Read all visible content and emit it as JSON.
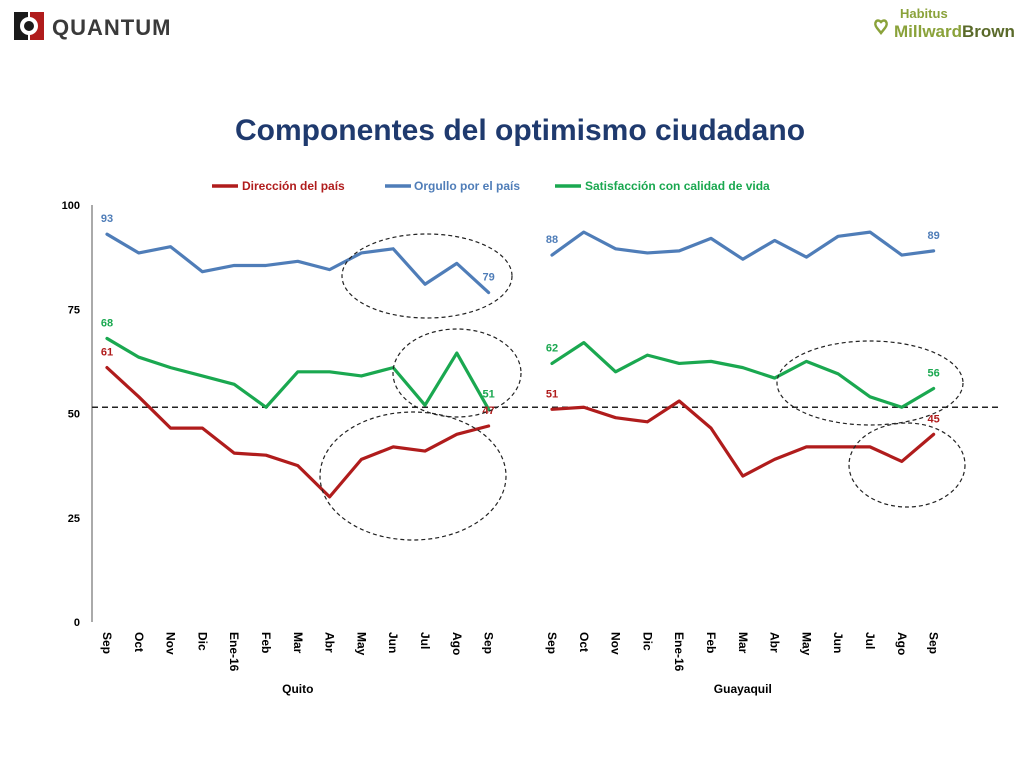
{
  "header": {
    "left_logo_text": "QUANTUM",
    "right_logo_top": "Habitus",
    "right_logo_main_a": "Millward",
    "right_logo_main_b": "Brown"
  },
  "colors": {
    "red": "#b01c1c",
    "blue": "#4f7db8",
    "green": "#1aa850",
    "title": "#1f3a6e"
  },
  "chart_data": {
    "type": "line",
    "title": "Componentes del optimismo ciudadano",
    "ylim": [
      0,
      100
    ],
    "yticks": [
      0,
      25,
      50,
      75,
      100
    ],
    "reference_line": 51.5,
    "legend_position": "top",
    "panels": [
      {
        "name": "Quito",
        "categories": [
          "Sep",
          "Oct",
          "Nov",
          "Dic",
          "Ene-16",
          "Feb",
          "Mar",
          "Abr",
          "May",
          "Jun",
          "Jul",
          "Ago",
          "Sep"
        ],
        "series": [
          {
            "name": "Dirección del país",
            "color": "#b01c1c",
            "values": [
              61,
              54,
              46.5,
              46.5,
              40.5,
              40,
              37.5,
              30,
              39,
              42,
              41,
              45,
              47
            ],
            "labels": [
              {
                "index": 0,
                "text": "61"
              },
              {
                "index": 12,
                "text": "47"
              }
            ]
          },
          {
            "name": "Orgullo por el país",
            "color": "#4f7db8",
            "values": [
              93,
              88.5,
              90,
              84,
              85.5,
              85.5,
              86.5,
              84.5,
              88.5,
              89.5,
              81,
              86,
              79
            ],
            "labels": [
              {
                "index": 0,
                "text": "93"
              },
              {
                "index": 12,
                "text": "79"
              }
            ]
          },
          {
            "name": "Satisfacción con calidad de vida",
            "color": "#1aa850",
            "values": [
              68,
              63.5,
              61,
              59,
              57,
              51.5,
              60,
              60,
              59,
              61,
              52,
              64.5,
              51
            ],
            "labels": [
              {
                "index": 0,
                "text": "68"
              },
              {
                "index": 12,
                "text": "51"
              }
            ]
          }
        ]
      },
      {
        "name": "Guayaquil",
        "categories": [
          "Sep",
          "Oct",
          "Nov",
          "Dic",
          "Ene-16",
          "Feb",
          "Mar",
          "Abr",
          "May",
          "Jun",
          "Jul",
          "Ago",
          "Sep"
        ],
        "series": [
          {
            "name": "Dirección del país",
            "color": "#b01c1c",
            "values": [
              51,
              51.5,
              49,
              48,
              53,
              46.5,
              35,
              39,
              42,
              42,
              42,
              38.5,
              45
            ],
            "labels": [
              {
                "index": 0,
                "text": "51"
              },
              {
                "index": 12,
                "text": "45"
              }
            ]
          },
          {
            "name": "Orgullo por el país",
            "color": "#4f7db8",
            "values": [
              88,
              93.5,
              89.5,
              88.5,
              89,
              92,
              87,
              91.5,
              87.5,
              92.5,
              93.5,
              88,
              89
            ],
            "labels": [
              {
                "index": 0,
                "text": "88"
              },
              {
                "index": 12,
                "text": "89"
              }
            ]
          },
          {
            "name": "Satisfacción con calidad de vida",
            "color": "#1aa850",
            "values": [
              62,
              67,
              60,
              64,
              62,
              62.5,
              61,
              58.5,
              62.5,
              59.5,
              54,
              51.5,
              56
            ],
            "labels": [
              {
                "index": 0,
                "text": "62"
              },
              {
                "index": 12,
                "text": "56"
              }
            ]
          }
        ]
      }
    ]
  }
}
